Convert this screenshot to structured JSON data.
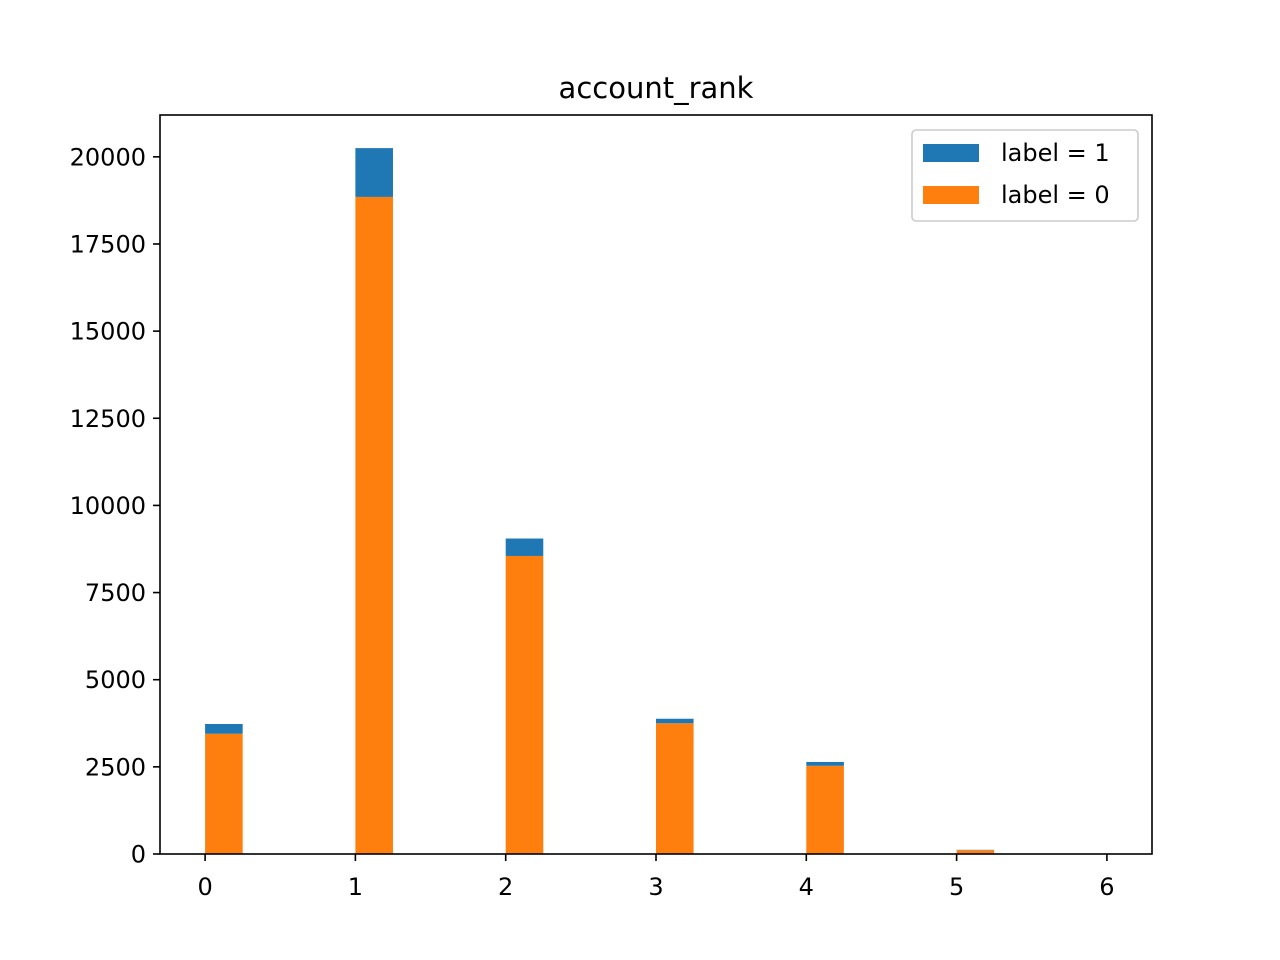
{
  "chart_data": {
    "type": "bar",
    "title": "account_rank",
    "xlabel": "",
    "ylabel": "",
    "x": [
      0,
      1,
      2,
      3,
      4,
      5,
      6
    ],
    "x_ticks": [
      "0",
      "1",
      "2",
      "3",
      "4",
      "5",
      "6"
    ],
    "y_ticks": [
      "0",
      "2500",
      "5000",
      "7500",
      "10000",
      "12500",
      "15000",
      "17500",
      "20000"
    ],
    "xlim": [
      -0.3,
      6.3
    ],
    "ylim": [
      0,
      21200
    ],
    "stacked": true,
    "bar_width": 0.25,
    "series": [
      {
        "name": "label = 0",
        "color": "#ff7f0e",
        "values": [
          3450,
          18850,
          8550,
          3750,
          2530,
          110,
          0
        ]
      },
      {
        "name": "label = 1",
        "color": "#1f77b4",
        "values": [
          280,
          1400,
          500,
          130,
          110,
          10,
          0
        ]
      }
    ],
    "legend": {
      "position": "top-right",
      "entries": [
        "label = 1",
        "label = 0"
      ]
    },
    "grid": false
  }
}
